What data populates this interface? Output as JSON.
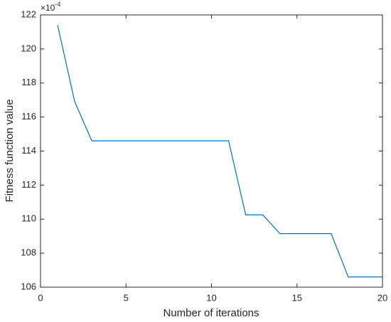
{
  "chart_data": {
    "type": "line",
    "xlabel": "Number of iterations",
    "ylabel": "Fitness function value",
    "y_multiplier": {
      "base": "×10",
      "exponent": "-4"
    },
    "x": [
      1,
      2,
      3,
      4,
      5,
      6,
      7,
      8,
      9,
      10,
      11,
      12,
      13,
      14,
      15,
      16,
      17,
      18,
      19,
      20
    ],
    "series": [
      {
        "color": "#0072bd",
        "values": [
          121.4,
          116.9,
          114.6,
          114.6,
          114.6,
          114.6,
          114.6,
          114.6,
          114.6,
          114.6,
          114.6,
          110.25,
          110.25,
          109.15,
          109.15,
          109.15,
          109.15,
          106.6,
          106.6,
          106.6
        ]
      }
    ],
    "xlim": [
      0,
      20
    ],
    "xticks": [
      0,
      5,
      10,
      15,
      20
    ],
    "ylim": [
      106,
      122
    ],
    "yticks": [
      106,
      108,
      110,
      112,
      114,
      116,
      118,
      120,
      122
    ],
    "grid": false
  }
}
